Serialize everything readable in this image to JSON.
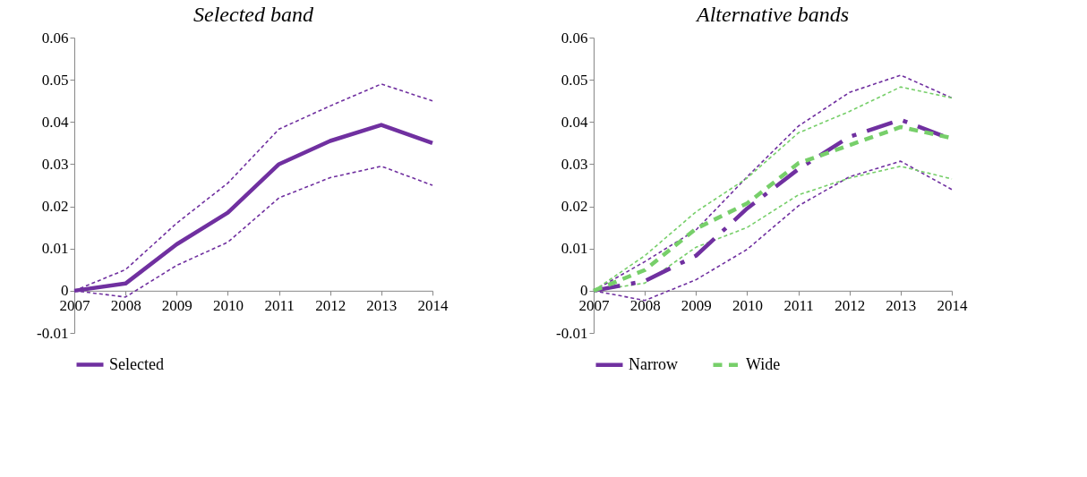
{
  "chart_data": [
    {
      "type": "line",
      "title": "Selected band",
      "categories": [
        "2007",
        "2008",
        "2009",
        "2010",
        "2011",
        "2012",
        "2013",
        "2014"
      ],
      "ylim": [
        -0.01,
        0.06
      ],
      "yticks": [
        -0.01,
        0,
        0.01,
        0.02,
        0.03,
        0.04,
        0.05,
        0.06
      ],
      "grid": false,
      "legend": "bottom",
      "marker": "none",
      "series": [
        {
          "name": "Selected",
          "color": "#7030a0",
          "line_style": "solid",
          "values": [
            0,
            0.0017,
            0.011,
            0.0185,
            0.03,
            0.0355,
            0.0393,
            0.035
          ]
        },
        {
          "color": "#7030a0",
          "line_style": "dashed",
          "values": [
            0,
            0.005,
            0.016,
            0.0255,
            0.0383,
            0.0438,
            0.049,
            0.045
          ]
        },
        {
          "color": "#7030a0",
          "line_style": "dashed",
          "values": [
            0,
            -0.0015,
            0.006,
            0.0115,
            0.022,
            0.0268,
            0.0295,
            0.025
          ]
        }
      ]
    },
    {
      "type": "line",
      "title": "Alternative bands",
      "categories": [
        "2007",
        "2008",
        "2009",
        "2010",
        "2011",
        "2012",
        "2013",
        "2014"
      ],
      "ylim": [
        -0.01,
        0.06
      ],
      "yticks": [
        -0.01,
        0,
        0.01,
        0.02,
        0.03,
        0.04,
        0.05,
        0.06
      ],
      "grid": false,
      "legend": "bottom",
      "marker": "none",
      "series": [
        {
          "name": "Narrow",
          "color": "#7030a0",
          "line_style": "dashdot",
          "values": [
            0,
            0.0023,
            0.0083,
            0.0195,
            0.0288,
            0.0365,
            0.0405,
            0.0359
          ]
        },
        {
          "name": "Wide",
          "color": "#77cf6a",
          "line_style": "dashed",
          "values": [
            0,
            0.0049,
            0.0147,
            0.0207,
            0.0302,
            0.0345,
            0.0388,
            0.0362
          ]
        },
        {
          "color": "#7030a0",
          "line_style": "dashed",
          "values": [
            0,
            0.0069,
            0.0144,
            0.027,
            0.039,
            0.047,
            0.0511,
            0.0457
          ]
        },
        {
          "color": "#7030a0",
          "line_style": "dashed",
          "values": [
            0,
            -0.0023,
            0.0026,
            0.0098,
            0.0201,
            0.027,
            0.0307,
            0.024
          ]
        },
        {
          "color": "#77cf6a",
          "line_style": "dashed",
          "values": [
            0,
            0.0083,
            0.0187,
            0.0267,
            0.0374,
            0.0425,
            0.0483,
            0.0457
          ]
        },
        {
          "color": "#77cf6a",
          "line_style": "dashed",
          "values": [
            0,
            0.0018,
            0.0103,
            0.015,
            0.0227,
            0.0267,
            0.0295,
            0.0265
          ]
        }
      ]
    }
  ]
}
